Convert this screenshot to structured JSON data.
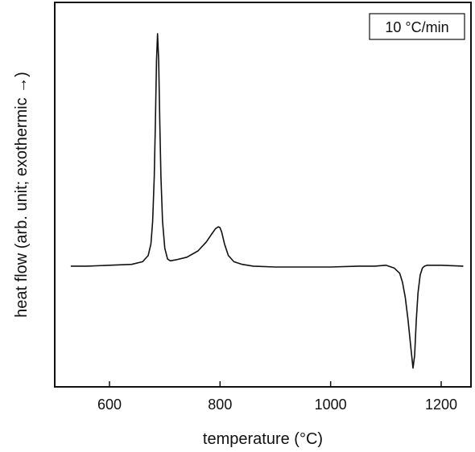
{
  "chart_data": {
    "type": "line",
    "title": "",
    "xlabel": "temperature (°C)",
    "ylabel": "heat flow (arb. unit; exothermic →)",
    "xlim": [
      500,
      1250
    ],
    "ylim": [
      -1.35,
      2.95
    ],
    "x_ticks": [
      600,
      800,
      1000,
      1200
    ],
    "y_ticks_visible": false,
    "grid": false,
    "legend": "none",
    "annotation": "10 °C/min",
    "annotation_position": "top-right",
    "line_color": "#111111",
    "series": [
      {
        "x": [
          530,
          560,
          600,
          640,
          660,
          670,
          675,
          678,
          681,
          683,
          685,
          687,
          689,
          691,
          693,
          696,
          700,
          705,
          710,
          720,
          740,
          760,
          775,
          785,
          792,
          797,
          800,
          803,
          808,
          815,
          825,
          840,
          860,
          900,
          950,
          1000,
          1050,
          1080,
          1100,
          1115,
          1125,
          1130,
          1135,
          1140,
          1145,
          1149,
          1152,
          1155,
          1158,
          1162,
          1166,
          1170,
          1175,
          1180,
          1200,
          1240
        ],
        "y": [
          0.0,
          0.0,
          0.01,
          0.02,
          0.05,
          0.12,
          0.25,
          0.5,
          1.0,
          1.6,
          2.3,
          2.6,
          2.3,
          1.6,
          1.0,
          0.5,
          0.2,
          0.08,
          0.06,
          0.07,
          0.1,
          0.17,
          0.27,
          0.36,
          0.42,
          0.44,
          0.43,
          0.38,
          0.25,
          0.12,
          0.05,
          0.02,
          0.0,
          -0.01,
          -0.01,
          -0.01,
          0.0,
          0.0,
          0.01,
          -0.02,
          -0.08,
          -0.18,
          -0.35,
          -0.6,
          -0.9,
          -1.14,
          -1.0,
          -0.6,
          -0.3,
          -0.1,
          -0.02,
          0.0,
          0.01,
          0.01,
          0.01,
          0.0
        ]
      }
    ]
  }
}
